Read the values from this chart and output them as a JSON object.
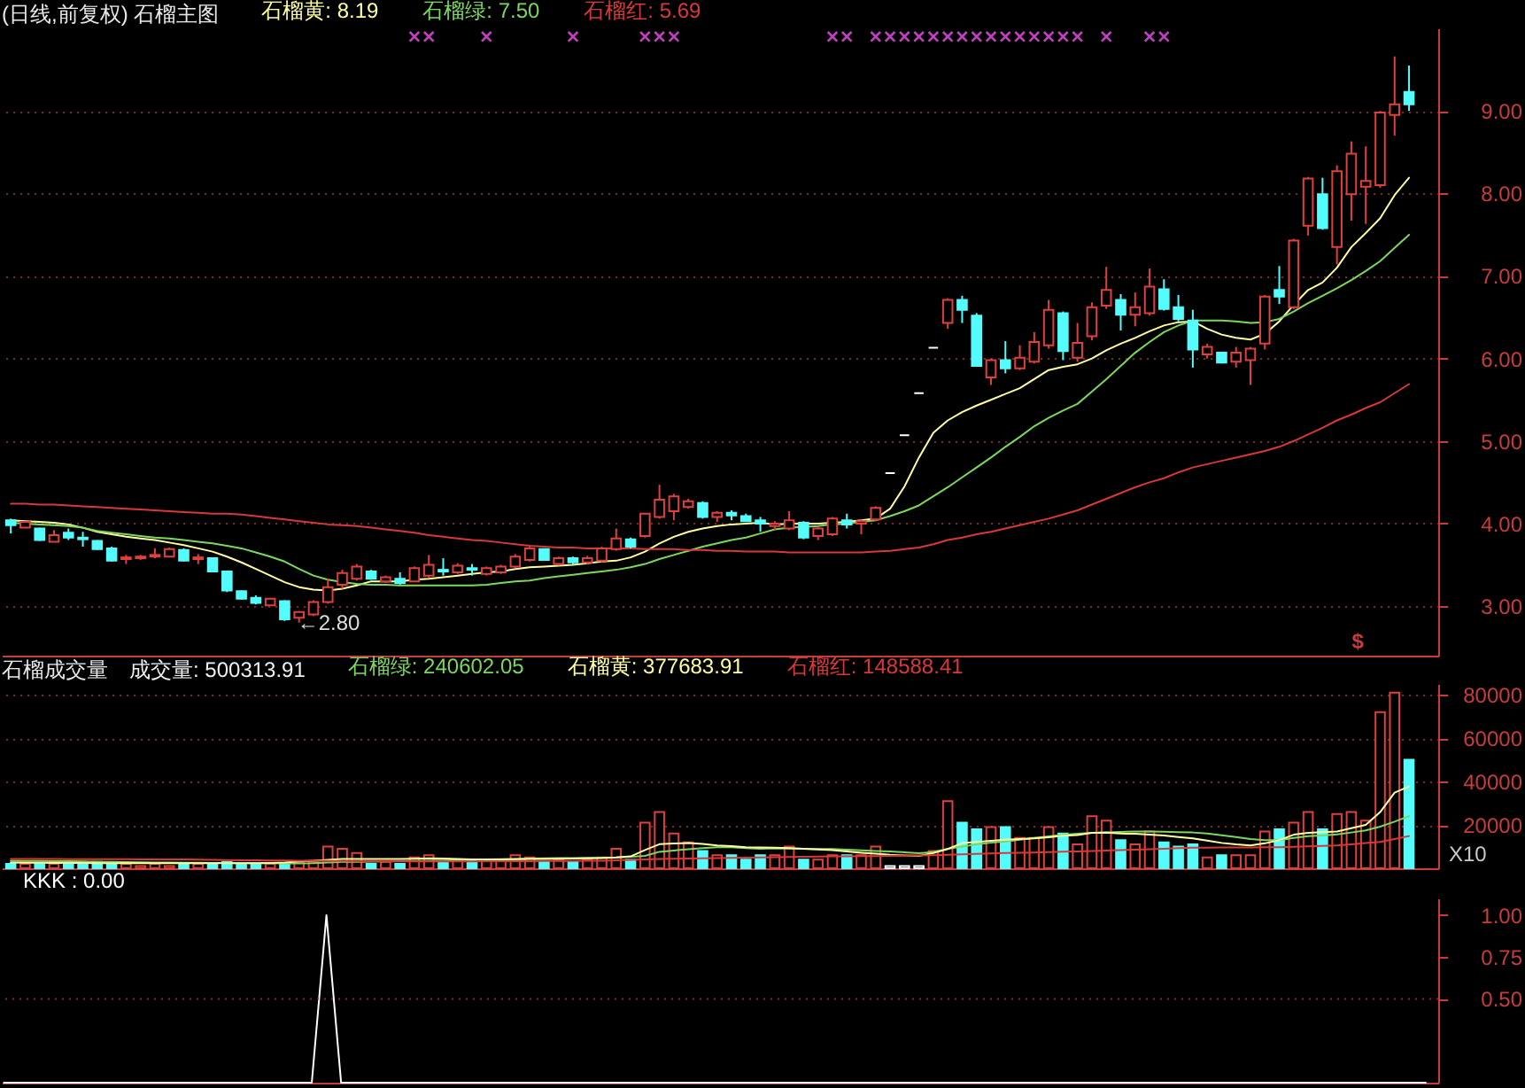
{
  "chart_data": [
    {
      "type": "candlestick",
      "title": "(日线,前复权) 石榴主图",
      "categories": [
        null,
        null,
        null,
        null,
        null,
        null,
        null,
        null,
        null,
        null,
        null,
        null,
        null,
        null,
        null,
        null,
        null,
        null,
        null,
        null,
        null,
        null,
        null,
        null,
        null,
        null,
        null,
        null,
        null,
        null,
        null,
        null,
        null,
        null,
        null,
        null,
        null,
        null,
        null,
        null,
        null,
        null,
        null,
        null,
        null,
        null,
        null,
        null,
        null,
        null,
        null,
        null,
        null,
        null,
        null,
        null,
        null,
        null,
        null,
        null,
        null,
        null,
        null,
        null,
        null,
        null,
        null,
        null,
        null,
        null,
        null,
        null,
        null,
        null,
        null,
        null,
        null,
        null,
        null,
        null,
        null,
        null,
        null,
        null,
        null,
        null,
        null,
        null,
        null,
        null,
        null,
        null,
        null,
        null,
        null,
        null,
        null,
        null
      ],
      "ohlc": [
        [
          4.04,
          4.06,
          3.88,
          3.98
        ],
        [
          3.95,
          4.03,
          3.95,
          4.02
        ],
        [
          3.94,
          3.95,
          3.79,
          3.8
        ],
        [
          3.78,
          3.92,
          3.78,
          3.86
        ],
        [
          3.89,
          3.94,
          3.8,
          3.83
        ],
        [
          3.83,
          3.9,
          3.72,
          3.81
        ],
        [
          3.79,
          3.8,
          3.68,
          3.69
        ],
        [
          3.7,
          3.72,
          3.54,
          3.55
        ],
        [
          3.57,
          3.62,
          3.51,
          3.59
        ],
        [
          3.58,
          3.62,
          3.56,
          3.6
        ],
        [
          3.6,
          3.7,
          3.58,
          3.62
        ],
        [
          3.6,
          3.71,
          3.59,
          3.69
        ],
        [
          3.68,
          3.7,
          3.54,
          3.55
        ],
        [
          3.57,
          3.63,
          3.51,
          3.59
        ],
        [
          3.58,
          3.59,
          3.41,
          3.42
        ],
        [
          3.42,
          3.43,
          3.17,
          3.19
        ],
        [
          3.18,
          3.19,
          3.08,
          3.09
        ],
        [
          3.1,
          3.13,
          3.02,
          3.04
        ],
        [
          3.01,
          3.1,
          3.0,
          3.09
        ],
        [
          3.06,
          3.07,
          2.82,
          2.84
        ],
        [
          2.86,
          2.94,
          2.8,
          2.93
        ],
        [
          2.9,
          3.07,
          2.88,
          3.05
        ],
        [
          3.05,
          3.33,
          3.03,
          3.23
        ],
        [
          3.26,
          3.44,
          3.21,
          3.4
        ],
        [
          3.33,
          3.51,
          3.31,
          3.48
        ],
        [
          3.42,
          3.44,
          3.32,
          3.33
        ],
        [
          3.3,
          3.37,
          3.28,
          3.35
        ],
        [
          3.33,
          3.41,
          3.26,
          3.28
        ],
        [
          3.3,
          3.48,
          3.29,
          3.46
        ],
        [
          3.37,
          3.62,
          3.34,
          3.5
        ],
        [
          3.44,
          3.58,
          3.37,
          3.42
        ],
        [
          3.41,
          3.52,
          3.39,
          3.49
        ],
        [
          3.46,
          3.51,
          3.37,
          3.44
        ],
        [
          3.39,
          3.48,
          3.37,
          3.46
        ],
        [
          3.41,
          3.5,
          3.39,
          3.48
        ],
        [
          3.48,
          3.63,
          3.46,
          3.6
        ],
        [
          3.56,
          3.72,
          3.54,
          3.7
        ],
        [
          3.69,
          3.7,
          3.55,
          3.56
        ],
        [
          3.51,
          3.6,
          3.49,
          3.58
        ],
        [
          3.58,
          3.6,
          3.5,
          3.53
        ],
        [
          3.53,
          3.61,
          3.51,
          3.58
        ],
        [
          3.55,
          3.72,
          3.53,
          3.7
        ],
        [
          3.69,
          3.94,
          3.67,
          3.82
        ],
        [
          3.81,
          3.83,
          3.7,
          3.72
        ],
        [
          3.85,
          4.13,
          3.83,
          4.12
        ],
        [
          4.08,
          4.47,
          4.06,
          4.29
        ],
        [
          4.15,
          4.36,
          4.04,
          4.33
        ],
        [
          4.2,
          4.3,
          4.18,
          4.27
        ],
        [
          4.25,
          4.27,
          4.06,
          4.08
        ],
        [
          4.08,
          4.15,
          4.02,
          4.13
        ],
        [
          4.13,
          4.16,
          4.04,
          4.1
        ],
        [
          4.09,
          4.12,
          4.02,
          4.03
        ],
        [
          4.04,
          4.08,
          3.9,
          4.0
        ],
        [
          3.97,
          4.03,
          3.92,
          4.0
        ],
        [
          3.94,
          4.15,
          3.92,
          4.04
        ],
        [
          4.01,
          4.03,
          3.81,
          3.83
        ],
        [
          3.85,
          3.96,
          3.8,
          3.94
        ],
        [
          3.87,
          4.08,
          3.85,
          4.06
        ],
        [
          4.04,
          4.12,
          3.94,
          3.99
        ],
        [
          4.0,
          4.05,
          3.87,
          4.03
        ],
        [
          4.05,
          4.21,
          4.03,
          4.19
        ],
        [
          4.61,
          4.61,
          4.61,
          4.61
        ],
        [
          5.07,
          5.07,
          5.07,
          5.07
        ],
        [
          5.58,
          5.58,
          5.58,
          5.58
        ],
        [
          6.13,
          6.13,
          6.13,
          6.13
        ],
        [
          6.43,
          6.73,
          6.36,
          6.71
        ],
        [
          6.71,
          6.76,
          6.43,
          6.59
        ],
        [
          6.52,
          6.55,
          5.9,
          5.91
        ],
        [
          5.77,
          6.0,
          5.68,
          5.98
        ],
        [
          5.98,
          6.21,
          5.82,
          5.88
        ],
        [
          5.88,
          6.16,
          5.86,
          6.01
        ],
        [
          5.96,
          6.32,
          5.94,
          6.2
        ],
        [
          6.16,
          6.71,
          6.12,
          6.59
        ],
        [
          6.55,
          6.57,
          5.98,
          6.09
        ],
        [
          6.01,
          6.43,
          5.96,
          6.19
        ],
        [
          6.27,
          6.68,
          6.22,
          6.62
        ],
        [
          6.64,
          7.11,
          6.6,
          6.83
        ],
        [
          6.71,
          6.78,
          6.34,
          6.53
        ],
        [
          6.53,
          6.8,
          6.39,
          6.62
        ],
        [
          6.55,
          7.09,
          6.52,
          6.87
        ],
        [
          6.84,
          6.96,
          6.58,
          6.6
        ],
        [
          6.62,
          6.77,
          6.45,
          6.48
        ],
        [
          6.46,
          6.59,
          5.89,
          6.11
        ],
        [
          6.05,
          6.18,
          6.0,
          6.14
        ],
        [
          6.07,
          6.08,
          5.94,
          5.95
        ],
        [
          5.96,
          6.14,
          5.89,
          6.07
        ],
        [
          5.98,
          6.14,
          5.68,
          6.12
        ],
        [
          6.18,
          6.77,
          6.11,
          6.75
        ],
        [
          6.83,
          7.12,
          6.66,
          6.75
        ],
        [
          6.62,
          7.45,
          6.6,
          7.43
        ],
        [
          7.61,
          8.2,
          7.49,
          8.18
        ],
        [
          7.99,
          8.19,
          7.56,
          7.58
        ],
        [
          7.35,
          8.34,
          7.14,
          8.27
        ],
        [
          7.99,
          8.63,
          7.67,
          8.48
        ],
        [
          8.08,
          8.57,
          7.63,
          8.15
        ],
        [
          8.1,
          9.0,
          8.07,
          8.98
        ],
        [
          8.95,
          9.66,
          8.7,
          9.08
        ],
        [
          9.23,
          9.55,
          9.0,
          9.08
        ]
      ],
      "colors": [
        "#54fcfc",
        "#e0403c",
        "#54fcfc",
        "#e0403c",
        "#54fcfc",
        "#54fcfc",
        "#54fcfc",
        "#54fcfc",
        "#e0403c",
        "#e0403c",
        "#e0403c",
        "#e0403c",
        "#54fcfc",
        "#e0403c",
        "#54fcfc",
        "#54fcfc",
        "#54fcfc",
        "#54fcfc",
        "#e0403c",
        "#54fcfc",
        "#e0403c",
        "#e0403c",
        "#e0403c",
        "#e0403c",
        "#e0403c",
        "#54fcfc",
        "#e0403c",
        "#54fcfc",
        "#e0403c",
        "#e0403c",
        "#54fcfc",
        "#e0403c",
        "#54fcfc",
        "#e0403c",
        "#e0403c",
        "#e0403c",
        "#e0403c",
        "#54fcfc",
        "#e0403c",
        "#54fcfc",
        "#e0403c",
        "#e0403c",
        "#e0403c",
        "#54fcfc",
        "#e0403c",
        "#e0403c",
        "#e0403c",
        "#e0403c",
        "#54fcfc",
        "#e0403c",
        "#54fcfc",
        "#54fcfc",
        "#54fcfc",
        "#e0403c",
        "#e0403c",
        "#54fcfc",
        "#e0403c",
        "#e0403c",
        "#54fcfc",
        "#e0403c",
        "#e0403c",
        "#ffffff",
        "#ffffff",
        "#ffffff",
        "#ffffff",
        "#e0403c",
        "#54fcfc",
        "#54fcfc",
        "#e0403c",
        "#54fcfc",
        "#e0403c",
        "#e0403c",
        "#e0403c",
        "#54fcfc",
        "#e0403c",
        "#e0403c",
        "#e0403c",
        "#54fcfc",
        "#e0403c",
        "#e0403c",
        "#54fcfc",
        "#54fcfc",
        "#54fcfc",
        "#e0403c",
        "#54fcfc",
        "#e0403c",
        "#e0403c",
        "#e0403c",
        "#54fcfc",
        "#e0403c",
        "#e0403c",
        "#54fcfc",
        "#e0403c",
        "#e0403c",
        "#e0403c",
        "#e0403c",
        "#e0403c",
        "#54fcfc"
      ],
      "series": [
        {
          "name": "石榴黄: 8.19",
          "type": "line",
          "color": "#ffffa0",
          "values": [
            4.04,
            4.03,
            4.02,
            4.01,
            3.99,
            3.95,
            3.9,
            3.87,
            3.84,
            3.82,
            3.8,
            3.77,
            3.74,
            3.7,
            3.66,
            3.6,
            3.53,
            3.45,
            3.37,
            3.29,
            3.23,
            3.2,
            3.19,
            3.21,
            3.25,
            3.3,
            3.3,
            3.3,
            3.32,
            3.33,
            3.35,
            3.37,
            3.39,
            3.41,
            3.42,
            3.45,
            3.47,
            3.48,
            3.49,
            3.5,
            3.52,
            3.54,
            3.55,
            3.59,
            3.66,
            3.76,
            3.84,
            3.9,
            3.94,
            3.97,
            3.99,
            4.0,
            4.01,
            3.99,
            4.0,
            4.0,
            4.0,
            4.01,
            4.02,
            4.04,
            4.06,
            4.18,
            4.45,
            4.8,
            5.1,
            5.25,
            5.35,
            5.43,
            5.5,
            5.57,
            5.64,
            5.75,
            5.86,
            5.9,
            5.93,
            6.0,
            6.1,
            6.18,
            6.25,
            6.33,
            6.4,
            6.44,
            6.45,
            6.36,
            6.29,
            6.25,
            6.23,
            6.3,
            6.45,
            6.65,
            6.83,
            6.92,
            7.1,
            7.35,
            7.52,
            7.7,
            7.98,
            8.19
          ]
        },
        {
          "name": "石榴绿: 7.50",
          "type": "line",
          "color": "#7cd85c",
          "values": [
            4.01,
            4.0,
            3.99,
            3.98,
            3.97,
            3.95,
            3.91,
            3.89,
            3.87,
            3.85,
            3.83,
            3.82,
            3.8,
            3.78,
            3.76,
            3.73,
            3.7,
            3.65,
            3.6,
            3.54,
            3.45,
            3.37,
            3.32,
            3.29,
            3.27,
            3.26,
            3.26,
            3.25,
            3.25,
            3.25,
            3.25,
            3.25,
            3.25,
            3.26,
            3.28,
            3.3,
            3.31,
            3.34,
            3.36,
            3.38,
            3.4,
            3.42,
            3.44,
            3.47,
            3.51,
            3.57,
            3.62,
            3.67,
            3.72,
            3.76,
            3.8,
            3.83,
            3.88,
            3.93,
            3.95,
            3.96,
            3.97,
            3.99,
            4.0,
            4.02,
            4.04,
            4.09,
            4.15,
            4.22,
            4.33,
            4.44,
            4.56,
            4.68,
            4.8,
            4.93,
            5.05,
            5.18,
            5.28,
            5.37,
            5.45,
            5.6,
            5.75,
            5.91,
            6.07,
            6.2,
            6.32,
            6.4,
            6.46,
            6.46,
            6.46,
            6.45,
            6.43,
            6.44,
            6.48,
            6.57,
            6.67,
            6.76,
            6.85,
            6.95,
            7.06,
            7.18,
            7.34,
            7.5
          ]
        },
        {
          "name": "石榴红: 5.69",
          "type": "line",
          "color": "#d83838",
          "values": [
            4.24,
            4.24,
            4.23,
            4.23,
            4.22,
            4.21,
            4.2,
            4.19,
            4.18,
            4.17,
            4.16,
            4.15,
            4.14,
            4.13,
            4.12,
            4.12,
            4.11,
            4.09,
            4.07,
            4.05,
            4.03,
            4.01,
            3.99,
            3.98,
            3.97,
            3.95,
            3.93,
            3.91,
            3.89,
            3.86,
            3.84,
            3.82,
            3.8,
            3.79,
            3.77,
            3.75,
            3.73,
            3.72,
            3.71,
            3.71,
            3.7,
            3.7,
            3.7,
            3.7,
            3.69,
            3.69,
            3.69,
            3.68,
            3.68,
            3.67,
            3.67,
            3.66,
            3.66,
            3.66,
            3.65,
            3.65,
            3.65,
            3.65,
            3.65,
            3.65,
            3.66,
            3.67,
            3.69,
            3.71,
            3.75,
            3.8,
            3.83,
            3.87,
            3.9,
            3.94,
            3.98,
            4.02,
            4.06,
            4.11,
            4.16,
            4.23,
            4.3,
            4.37,
            4.44,
            4.5,
            4.55,
            4.62,
            4.68,
            4.72,
            4.76,
            4.8,
            4.84,
            4.88,
            4.93,
            5.0,
            5.08,
            5.16,
            5.25,
            5.32,
            5.4,
            5.47,
            5.58,
            5.69
          ]
        },
        {
          "type": "scatter",
          "marker": "cross",
          "color": "#c040c0",
          "values": [
            null,
            null,
            null,
            null,
            null,
            null,
            null,
            null,
            null,
            null,
            null,
            null,
            null,
            null,
            null,
            null,
            null,
            null,
            null,
            null,
            null,
            null,
            null,
            null,
            null,
            null,
            null,
            null,
            9.9,
            9.9,
            null,
            null,
            null,
            9.9,
            null,
            null,
            null,
            null,
            null,
            9.9,
            null,
            null,
            null,
            null,
            9.9,
            9.9,
            9.9,
            null,
            null,
            null,
            null,
            null,
            null,
            null,
            null,
            null,
            null,
            9.9,
            9.9,
            null,
            9.9,
            9.9,
            9.9,
            9.9,
            9.9,
            9.9,
            9.9,
            9.9,
            9.9,
            9.9,
            9.9,
            9.9,
            9.9,
            9.9,
            9.9,
            null,
            9.9,
            null,
            null,
            9.9,
            9.9,
            null,
            null,
            null,
            null,
            null,
            null,
            null,
            null,
            null,
            null,
            null,
            null,
            null,
            null,
            null,
            null,
            null
          ]
        }
      ],
      "ylim": [
        2.4,
        10.0
      ],
      "yticks": [
        {
          "value": 3,
          "label": "3.00"
        },
        {
          "value": 4,
          "label": "4.00"
        },
        {
          "value": 5,
          "label": "5.00"
        },
        {
          "value": 6,
          "label": "6.00"
        },
        {
          "value": 7,
          "label": "7.00"
        },
        {
          "value": 8,
          "label": "8.00"
        },
        {
          "value": 9,
          "label": "9.00"
        }
      ],
      "grid": "y",
      "legend": "top left",
      "tick_labels": "y",
      "annotations": [
        "←2.80",
        "$"
      ]
    },
    {
      "type": "bar",
      "title": "石榴成交量",
      "categories": [
        null,
        null,
        null,
        null,
        null,
        null,
        null,
        null,
        null,
        null,
        null,
        null,
        null,
        null,
        null,
        null,
        null,
        null,
        null,
        null,
        null,
        null,
        null,
        null,
        null,
        null,
        null,
        null,
        null,
        null,
        null,
        null,
        null,
        null,
        null,
        null,
        null,
        null,
        null,
        null,
        null,
        null,
        null,
        null,
        null,
        null,
        null,
        null,
        null,
        null,
        null,
        null,
        null,
        null,
        null,
        null,
        null,
        null,
        null,
        null,
        null,
        null,
        null,
        null,
        null,
        null,
        null,
        null,
        null,
        null,
        null,
        null,
        null,
        null,
        null,
        null,
        null,
        null,
        null,
        null,
        null,
        null,
        null,
        null,
        null,
        null,
        null,
        null,
        null,
        null,
        null,
        null,
        null,
        null,
        null,
        null,
        null,
        null
      ],
      "series": [
        {
          "type": "bar",
          "values": [
            2000,
            2000,
            2000,
            2000,
            2000,
            2000,
            3000,
            2000,
            2000,
            1000,
            2000,
            1000,
            2000,
            2000,
            2000,
            3000,
            2000,
            2000,
            2000,
            2000,
            3000,
            3000,
            10000,
            9000,
            7000,
            2000,
            3000,
            2000,
            5000,
            6000,
            3000,
            4000,
            4000,
            4000,
            4000,
            6000,
            5000,
            3000,
            4000,
            3000,
            4000,
            5000,
            9000,
            4000,
            21000,
            26000,
            16000,
            12000,
            8000,
            6000,
            6000,
            4000,
            6000,
            6000,
            10000,
            4000,
            4000,
            6000,
            6000,
            6000,
            10000,
            1000,
            1000,
            1000,
            8000,
            31000,
            21000,
            18000,
            19000,
            19000,
            14000,
            14000,
            19000,
            16000,
            11000,
            24000,
            22000,
            13000,
            11000,
            17000,
            12000,
            10000,
            11000,
            5000,
            6000,
            6000,
            6000,
            17000,
            18000,
            21000,
            26000,
            18000,
            25000,
            26000,
            22000,
            72000,
            81000,
            50031
          ],
          "colors": [
            "#54fcfc",
            "#e0403c",
            "#54fcfc",
            "#e0403c",
            "#54fcfc",
            "#54fcfc",
            "#54fcfc",
            "#54fcfc",
            "#e0403c",
            "#e0403c",
            "#e0403c",
            "#e0403c",
            "#54fcfc",
            "#e0403c",
            "#54fcfc",
            "#54fcfc",
            "#54fcfc",
            "#54fcfc",
            "#e0403c",
            "#54fcfc",
            "#e0403c",
            "#e0403c",
            "#e0403c",
            "#e0403c",
            "#e0403c",
            "#54fcfc",
            "#e0403c",
            "#54fcfc",
            "#e0403c",
            "#e0403c",
            "#54fcfc",
            "#e0403c",
            "#54fcfc",
            "#e0403c",
            "#e0403c",
            "#e0403c",
            "#e0403c",
            "#54fcfc",
            "#e0403c",
            "#54fcfc",
            "#e0403c",
            "#e0403c",
            "#e0403c",
            "#54fcfc",
            "#e0403c",
            "#e0403c",
            "#e0403c",
            "#e0403c",
            "#54fcfc",
            "#e0403c",
            "#54fcfc",
            "#54fcfc",
            "#54fcfc",
            "#e0403c",
            "#e0403c",
            "#54fcfc",
            "#e0403c",
            "#e0403c",
            "#54fcfc",
            "#e0403c",
            "#e0403c",
            "#ffffff",
            "#ffffff",
            "#ffffff",
            "#e0403c",
            "#e0403c",
            "#54fcfc",
            "#54fcfc",
            "#e0403c",
            "#54fcfc",
            "#e0403c",
            "#e0403c",
            "#e0403c",
            "#54fcfc",
            "#e0403c",
            "#e0403c",
            "#e0403c",
            "#54fcfc",
            "#e0403c",
            "#e0403c",
            "#54fcfc",
            "#54fcfc",
            "#54fcfc",
            "#e0403c",
            "#54fcfc",
            "#e0403c",
            "#e0403c",
            "#e0403c",
            "#54fcfc",
            "#e0403c",
            "#e0403c",
            "#54fcfc",
            "#e0403c",
            "#e0403c",
            "#e0403c",
            "#e0403c",
            "#e0403c",
            "#54fcfc"
          ]
        },
        {
          "name": "石榴绿: 240602.05",
          "type": "line",
          "color": "#7cd85c",
          "values": [
            3500,
            3400,
            3400,
            3300,
            3300,
            3200,
            3000,
            3000,
            2900,
            2800,
            2700,
            2700,
            2600,
            2600,
            2500,
            2400,
            2400,
            2300,
            2300,
            2200,
            2200,
            2300,
            2700,
            3000,
            3000,
            3100,
            3200,
            3300,
            3400,
            3500,
            3600,
            3800,
            4000,
            4100,
            4200,
            4300,
            4500,
            4600,
            4700,
            4700,
            4800,
            4900,
            5000,
            5300,
            5700,
            7600,
            8200,
            8800,
            9300,
            9700,
            9700,
            9300,
            9000,
            9200,
            9100,
            9000,
            8900,
            8900,
            8600,
            8300,
            8000,
            7800,
            7400,
            6900,
            7500,
            9000,
            10000,
            11000,
            11800,
            12400,
            13200,
            14000,
            14700,
            15400,
            15900,
            16300,
            16600,
            16800,
            17000,
            17000,
            16900,
            16700,
            16500,
            16000,
            15200,
            14400,
            13500,
            13000,
            13000,
            14000,
            14800,
            15100,
            15600,
            16500,
            17500,
            19200,
            21500,
            24060
          ]
        },
        {
          "name": "石榴黄: 377683.91",
          "type": "line",
          "color": "#ffffa0",
          "values": [
            2700,
            2600,
            2600,
            2500,
            2500,
            2500,
            2400,
            2400,
            2400,
            2300,
            2300,
            2300,
            2300,
            2300,
            2300,
            2400,
            2400,
            2400,
            2500,
            2700,
            3200,
            3500,
            3900,
            4300,
            4300,
            4300,
            4300,
            4300,
            4400,
            4600,
            4500,
            4300,
            4100,
            4100,
            4100,
            4200,
            4300,
            4300,
            4400,
            4500,
            4600,
            4700,
            5000,
            5500,
            8400,
            11100,
            11400,
            11600,
            11200,
            10500,
            10200,
            9700,
            9600,
            9500,
            9300,
            9000,
            8700,
            8400,
            7800,
            7200,
            6700,
            6200,
            5900,
            5700,
            7000,
            8900,
            11600,
            12200,
            12700,
            13200,
            13500,
            13800,
            14300,
            15000,
            15300,
            16300,
            16400,
            16000,
            15900,
            15500,
            15100,
            14400,
            13800,
            12800,
            11700,
            11000,
            10500,
            11500,
            13000,
            15500,
            16300,
            16700,
            17000,
            18500,
            20000,
            25900,
            34900,
            37768
          ]
        },
        {
          "name": "石榴红: 148588.41",
          "type": "line",
          "color": "#d83838",
          "values": [
            4300,
            4300,
            4300,
            4300,
            4200,
            4200,
            4200,
            4200,
            4200,
            4100,
            4100,
            4100,
            4100,
            4000,
            3900,
            3800,
            3700,
            3700,
            3600,
            3600,
            3500,
            3500,
            3400,
            3400,
            3300,
            3300,
            3300,
            3200,
            3200,
            3200,
            3200,
            3200,
            3200,
            3300,
            3300,
            3300,
            3300,
            3400,
            3400,
            3400,
            3500,
            3500,
            3700,
            3900,
            4100,
            4300,
            4400,
            4500,
            4600,
            4700,
            4800,
            4900,
            5000,
            5100,
            5200,
            5300,
            5400,
            5500,
            5500,
            5600,
            5600,
            5700,
            5800,
            5900,
            6000,
            6200,
            6400,
            6600,
            6800,
            7000,
            7200,
            7300,
            7500,
            7700,
            7800,
            8000,
            8200,
            8400,
            8600,
            8800,
            9000,
            9300,
            9500,
            9500,
            9600,
            9600,
            9600,
            9700,
            9700,
            9900,
            10100,
            10300,
            10500,
            11000,
            11600,
            12200,
            13500,
            14859
          ]
        }
      ],
      "ylim": [
        0,
        85000
      ],
      "yticks": [
        20000,
        40000,
        60000,
        80000
      ],
      "grid": "y",
      "legend": "top left",
      "tick_labels": "y",
      "annotations": [
        "成交量: 500313.91",
        "X10"
      ]
    },
    {
      "type": "line",
      "categories": [
        null,
        null,
        null,
        null,
        null,
        null,
        null,
        null,
        null,
        null,
        null,
        null,
        null,
        null,
        null,
        null,
        null,
        null,
        null,
        null,
        null,
        null,
        null,
        null,
        null,
        null,
        null,
        null,
        null,
        null,
        null,
        null,
        null,
        null,
        null,
        null,
        null,
        null,
        null,
        null,
        null,
        null,
        null,
        null,
        null,
        null,
        null,
        null,
        null,
        null,
        null,
        null,
        null,
        null,
        null,
        null,
        null,
        null,
        null,
        null,
        null,
        null,
        null,
        null,
        null,
        null,
        null,
        null,
        null,
        null,
        null,
        null,
        null,
        null,
        null,
        null,
        null,
        null,
        null,
        null,
        null,
        null,
        null,
        null,
        null,
        null,
        null,
        null,
        null,
        null,
        null,
        null,
        null,
        null,
        null,
        null,
        null,
        null
      ],
      "series": [
        {
          "name": "KKK : 0.00",
          "color": "#ffffff",
          "values": [
            0,
            0,
            0,
            0,
            0,
            0,
            0,
            0,
            0,
            0,
            0,
            0,
            0,
            0,
            0,
            0,
            0,
            0,
            0,
            0,
            0,
            0,
            1,
            0,
            0,
            0,
            0,
            0,
            0,
            0,
            0,
            0,
            0,
            0,
            0,
            0,
            0,
            0,
            0,
            0,
            0,
            0,
            0,
            0,
            0,
            0,
            0,
            0,
            0,
            0,
            0,
            0,
            0,
            0,
            0,
            0,
            0,
            0,
            0,
            0,
            0,
            0,
            0,
            0,
            0,
            0,
            0,
            0,
            0,
            0,
            0,
            0,
            0,
            0,
            0,
            0,
            0,
            0,
            0,
            0,
            0,
            0,
            0,
            0,
            0,
            0,
            0,
            0,
            0,
            0,
            0,
            0,
            0,
            0,
            0,
            0,
            0,
            0
          ]
        }
      ],
      "ylim": [
        0,
        1.1
      ],
      "yticks": [
        {
          "value": 0.5,
          "label": "0.50"
        },
        {
          "value": 0.75,
          "label": "0.75"
        },
        {
          "value": 1,
          "label": "1.00"
        }
      ],
      "ref_lines": [
        {
          "axis": "y",
          "value": 0.5,
          "color": "#8c2c2c",
          "line_style": "dotted"
        }
      ],
      "legend": "top left",
      "tick_labels": "y"
    }
  ]
}
